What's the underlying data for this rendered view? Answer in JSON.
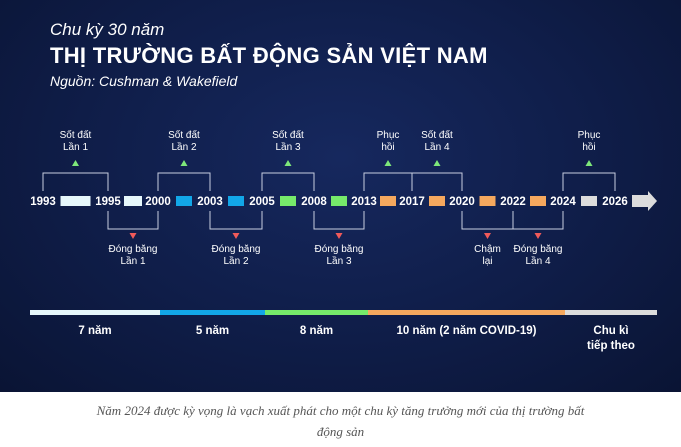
{
  "header": {
    "subtitle": "Chu kỳ 30 năm",
    "title": "THỊ TRƯỜNG BẤT ĐỘNG SẢN VIỆT NAM",
    "source": "Nguồn: Cushman & Wakefield"
  },
  "timeline": {
    "years": [
      "1993",
      "1995",
      "2000",
      "2003",
      "2005",
      "2008",
      "2013",
      "2017",
      "2020",
      "2022",
      "2024",
      "2026"
    ],
    "segment_colors": [
      "#e6f7fb",
      "#e6f7fb",
      "#12a7e8",
      "#12a7e8",
      "#76ea6a",
      "#76ea6a",
      "#f5a85e",
      "#f5a85e",
      "#f5a85e",
      "#f5a85e",
      "#dcdcdc"
    ],
    "above_events": [
      {
        "line1": "Sốt đất",
        "line2": "Lần 1"
      },
      {
        "line1": "Sốt đất",
        "line2": "Lần 2"
      },
      {
        "line1": "Sốt đất",
        "line2": "Lần 3"
      },
      {
        "line1": "Phục",
        "line2": "hồi"
      },
      {
        "line1": "Sốt đất",
        "line2": "Lần 4"
      },
      {
        "line1": "Phục",
        "line2": "hồi"
      }
    ],
    "below_events": [
      {
        "line1": "Đóng băng",
        "line2": "Lần 1"
      },
      {
        "line1": "Đóng băng",
        "line2": "Lần 2"
      },
      {
        "line1": "Đóng băng",
        "line2": "Lần 3"
      },
      {
        "line1": "Chậm",
        "line2": "lại"
      },
      {
        "line1": "Đóng băng",
        "line2": "Lần 4"
      }
    ],
    "up_color": "#7ee87a",
    "down_color": "#f05a5a"
  },
  "cycles": [
    {
      "label": "7 năm",
      "color": "#e6f7fb"
    },
    {
      "label": "5 năm",
      "color": "#12a7e8"
    },
    {
      "label": "8 năm",
      "color": "#76ea6a"
    },
    {
      "label": "10 năm (2 năm COVID-19)",
      "color": "#f5a85e"
    },
    {
      "label": "Chu kì",
      "label2": "tiếp theo",
      "color": "#dcdcdc"
    }
  ],
  "caption": {
    "line1": "Năm 2024 được kỳ vọng là vạch xuất phát cho một chu kỳ tăng trưởng mới của thị trường bất",
    "line2": "động sản"
  }
}
